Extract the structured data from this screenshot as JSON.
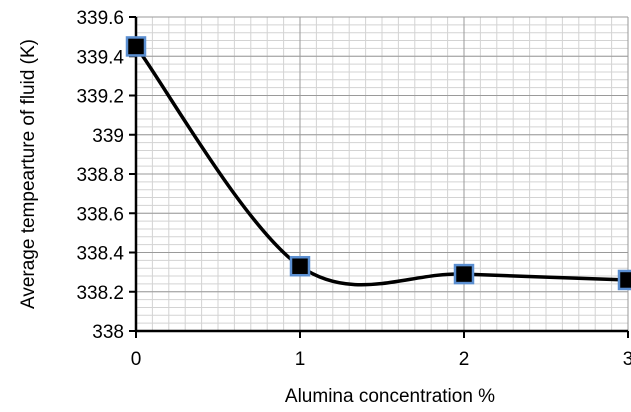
{
  "chart_data": {
    "type": "line",
    "title": "",
    "xlabel": "Alumina concentration %",
    "ylabel": "Average tempearture of fluid (K)",
    "xlim": [
      0,
      3
    ],
    "ylim": [
      338,
      339.6
    ],
    "x_ticks": [
      0,
      1,
      2,
      3
    ],
    "x_tick_labels": [
      "0",
      "1",
      "2",
      "3"
    ],
    "y_ticks": [
      338,
      338.2,
      338.4,
      338.6,
      338.8,
      339,
      339.2,
      339.4,
      339.6
    ],
    "y_tick_labels": [
      "338",
      "338.2",
      "338.4",
      "338.6",
      "338.8",
      "339",
      "339.2",
      "339.4",
      "339.6"
    ],
    "grid": true,
    "smoothed": true,
    "legend": "none",
    "series": [
      {
        "x": [
          0,
          1,
          2,
          3
        ],
        "y": [
          339.45,
          338.33,
          338.29,
          338.26
        ],
        "line_color": "#000000",
        "marker": "square",
        "marker_fill": "#000000",
        "marker_edge": "#5b8fd1"
      }
    ]
  }
}
